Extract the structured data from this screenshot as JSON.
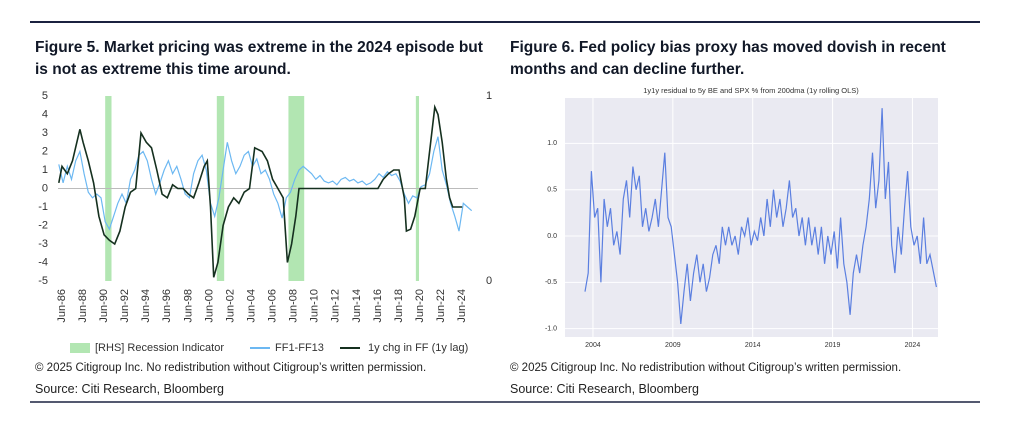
{
  "chart_data": [
    {
      "type": "line",
      "title": "Figure 5. Market pricing was extreme in the 2024 episode but is not as extreme this time around.",
      "xlim": [
        1986.12,
        2026.0
      ],
      "xticks": [
        {
          "value": 1986.5,
          "label": "Jun-86"
        },
        {
          "value": 1988.5,
          "label": "Jun-88"
        },
        {
          "value": 1990.5,
          "label": "Jun-90"
        },
        {
          "value": 1992.5,
          "label": "Jun-92"
        },
        {
          "value": 1994.5,
          "label": "Jun-94"
        },
        {
          "value": 1996.5,
          "label": "Jun-96"
        },
        {
          "value": 1998.5,
          "label": "Jun-98"
        },
        {
          "value": 2000.5,
          "label": "Jun-00"
        },
        {
          "value": 2002.5,
          "label": "Jun-02"
        },
        {
          "value": 2004.5,
          "label": "Jun-04"
        },
        {
          "value": 2006.5,
          "label": "Jun-06"
        },
        {
          "value": 2008.5,
          "label": "Jun-08"
        },
        {
          "value": 2010.5,
          "label": "Jun-10"
        },
        {
          "value": 2012.5,
          "label": "Jun-12"
        },
        {
          "value": 2014.5,
          "label": "Jun-14"
        },
        {
          "value": 2016.5,
          "label": "Jun-16"
        },
        {
          "value": 2018.5,
          "label": "Jun-18"
        },
        {
          "value": 2020.5,
          "label": "Jun-20"
        },
        {
          "value": 2022.5,
          "label": "Jun-22"
        },
        {
          "value": 2024.5,
          "label": "Jun-24"
        }
      ],
      "ylim": [
        -5,
        5
      ],
      "yticks": [
        -5,
        -4,
        -3,
        -2,
        -1,
        0,
        1,
        2,
        3,
        4,
        5
      ],
      "y2lim": [
        0,
        1
      ],
      "y2ticks": [
        0,
        1
      ],
      "recessions": {
        "name": "[RHS] Recession Indicator",
        "color": "#b2e6b2",
        "axis": "y2",
        "spans": [
          [
            1990.6,
            1991.2
          ],
          [
            2001.2,
            2001.9
          ],
          [
            2008.0,
            2009.5
          ],
          [
            2020.1,
            2020.4
          ]
        ],
        "values": [
          1,
          1,
          1,
          1
        ]
      },
      "series": [
        {
          "name": "FF1-FF13",
          "color": "#6cb8f2",
          "x": [
            1986.2,
            1986.6,
            1987,
            1987.4,
            1987.8,
            1988.2,
            1988.6,
            1989,
            1989.4,
            1989.8,
            1990.2,
            1990.6,
            1991,
            1991.4,
            1991.8,
            1992.2,
            1992.6,
            1993,
            1993.4,
            1993.8,
            1994.2,
            1994.6,
            1995,
            1995.4,
            1995.8,
            1996.2,
            1996.6,
            1997,
            1997.4,
            1997.8,
            1998.2,
            1998.6,
            1999,
            1999.4,
            1999.8,
            2000.2,
            2000.6,
            2001,
            2001.4,
            2001.8,
            2002.2,
            2002.6,
            2003,
            2003.4,
            2003.8,
            2004.2,
            2004.6,
            2005,
            2005.4,
            2005.8,
            2006.2,
            2006.6,
            2007,
            2007.4,
            2007.8,
            2008.2,
            2008.6,
            2009,
            2009.4,
            2009.8,
            2010.2,
            2010.6,
            2011,
            2011.4,
            2011.8,
            2012.2,
            2012.6,
            2013,
            2013.4,
            2013.8,
            2014.2,
            2014.6,
            2015,
            2015.4,
            2015.8,
            2016.2,
            2016.6,
            2017,
            2017.4,
            2017.8,
            2018.2,
            2018.6,
            2019,
            2019.4,
            2019.8,
            2020.2,
            2020.6,
            2021,
            2021.4,
            2021.8,
            2022.2,
            2022.6,
            2023,
            2023.4,
            2023.8,
            2024.2,
            2024.6,
            2025,
            2025.4
          ],
          "values": [
            1.3,
            0.3,
            1.2,
            0.5,
            1.5,
            2.0,
            0.8,
            -0.2,
            -0.5,
            -0.3,
            -0.5,
            -1.8,
            -2.2,
            -1.5,
            -0.8,
            -0.3,
            -0.8,
            0.5,
            1.0,
            1.8,
            2.0,
            1.5,
            0.5,
            -0.3,
            0.3,
            1.0,
            1.5,
            0.8,
            1.2,
            0.5,
            -0.3,
            -0.5,
            0.8,
            1.5,
            1.8,
            1.0,
            -0.8,
            -1.5,
            -0.5,
            1.0,
            2.5,
            1.5,
            0.8,
            1.2,
            1.8,
            2.0,
            1.2,
            1.6,
            0.8,
            1.0,
            0.5,
            -0.3,
            -0.8,
            -1.6,
            -0.5,
            -0.2,
            0.5,
            1.0,
            1.2,
            1.0,
            0.8,
            0.5,
            0.7,
            0.4,
            0.3,
            0.4,
            0.2,
            0.5,
            0.6,
            0.4,
            0.5,
            0.3,
            0.4,
            0.2,
            0.3,
            0.5,
            0.8,
            0.6,
            0.9,
            0.7,
            0.8,
            0.4,
            -0.3,
            -0.8,
            -0.4,
            -0.5,
            0.1,
            0.2,
            0.8,
            2.0,
            2.8,
            1.0,
            0.2,
            -0.8,
            -1.5,
            -2.3,
            -0.8,
            -1.0,
            -1.2
          ]
        },
        {
          "name": "1y chg in FF (1y lag)",
          "color": "#15301f",
          "x": [
            1986.2,
            1986.5,
            1987,
            1987.5,
            1988.2,
            1988.5,
            1989,
            1989.5,
            1990,
            1990.5,
            1991,
            1991.5,
            1992,
            1992.5,
            1993,
            1993.5,
            1994,
            1994.5,
            1995,
            1995.5,
            1996,
            1996.5,
            1997,
            1997.5,
            1998,
            1998.5,
            1999,
            1999.5,
            2000,
            2000.3,
            2000.6,
            2000.9,
            2001.3,
            2001.8,
            2002.3,
            2002.8,
            2003.3,
            2003.8,
            2004.3,
            2004.8,
            2005.5,
            2006,
            2006.5,
            2007,
            2007.5,
            2007.9,
            2008.3,
            2008.7,
            2009,
            2009.5,
            2016.5,
            2017,
            2017.5,
            2018,
            2018.5,
            2019,
            2019.2,
            2019.6,
            2020,
            2020.5,
            2021,
            2021.3,
            2021.9,
            2022.2,
            2022.6,
            2023,
            2023.3,
            2023.6,
            2024,
            2024.5
          ],
          "values": [
            0.3,
            1.2,
            0.8,
            1.5,
            3.2,
            2.5,
            1.5,
            0.3,
            -1.5,
            -2.5,
            -2.8,
            -3.0,
            -2.3,
            -1.0,
            -0.2,
            0,
            3.0,
            2.5,
            2.2,
            1.0,
            -0.3,
            -0.5,
            0.2,
            0,
            0,
            -0.3,
            -0.5,
            0.3,
            1.2,
            1.5,
            -1,
            -4.8,
            -4.0,
            -2.0,
            -1.0,
            -0.5,
            -0.8,
            -0.2,
            0,
            2.2,
            2.0,
            1.5,
            0.5,
            0,
            -0.5,
            -4.0,
            -3.0,
            -1.5,
            0,
            0,
            0,
            0.5,
            0.8,
            1.0,
            1.0,
            -0.5,
            -2.3,
            -2.2,
            -1.5,
            0,
            0,
            1.5,
            4.4,
            4.0,
            2.5,
            0.5,
            -0.5,
            -1.0,
            -1.0,
            -1.0
          ]
        }
      ]
    },
    {
      "type": "line",
      "title": "Figure 6. Fed policy bias proxy has moved dovish in recent months and can decline further.",
      "subtitle": "1y1y residual to 5y BE and SPX % from 200dma (1y rolling OLS)",
      "xlim": [
        2002.25,
        2025.6
      ],
      "xticks": [
        2004,
        2009,
        2014,
        2019,
        2024
      ],
      "ylim": [
        -1.09,
        1.49
      ],
      "yticks": [
        {
          "value": -1,
          "label": "-1.0"
        },
        -0.5,
        {
          "value": 0,
          "label": "0.0"
        },
        0.5,
        {
          "value": 1,
          "label": "1.0"
        }
      ],
      "grid": true,
      "series": [
        {
          "color": "#5b7fe0",
          "x": [
            2003.5,
            2003.7,
            2003.9,
            2004.1,
            2004.3,
            2004.5,
            2004.7,
            2004.9,
            2005.1,
            2005.3,
            2005.5,
            2005.7,
            2005.9,
            2006.1,
            2006.3,
            2006.5,
            2006.7,
            2006.9,
            2007.1,
            2007.3,
            2007.5,
            2007.7,
            2007.9,
            2008.1,
            2008.3,
            2008.5,
            2008.7,
            2008.9,
            2009.1,
            2009.3,
            2009.5,
            2009.7,
            2009.9,
            2010.1,
            2010.3,
            2010.5,
            2010.7,
            2010.9,
            2011.1,
            2011.3,
            2011.5,
            2011.7,
            2011.9,
            2012.1,
            2012.3,
            2012.5,
            2012.7,
            2012.9,
            2013.1,
            2013.3,
            2013.5,
            2013.7,
            2013.9,
            2014.1,
            2014.3,
            2014.5,
            2014.7,
            2014.9,
            2015.1,
            2015.3,
            2015.5,
            2015.7,
            2015.9,
            2016.1,
            2016.3,
            2016.5,
            2016.7,
            2016.9,
            2017.1,
            2017.3,
            2017.5,
            2017.7,
            2017.9,
            2018.1,
            2018.3,
            2018.5,
            2018.7,
            2018.9,
            2019.1,
            2019.3,
            2019.5,
            2019.7,
            2019.9,
            2020.1,
            2020.3,
            2020.5,
            2020.7,
            2020.9,
            2021.1,
            2021.3,
            2021.5,
            2021.7,
            2021.9,
            2022.1,
            2022.3,
            2022.5,
            2022.7,
            2022.9,
            2023.1,
            2023.3,
            2023.5,
            2023.7,
            2023.9,
            2024.1,
            2024.3,
            2024.5,
            2024.7,
            2024.9,
            2025.1,
            2025.5
          ],
          "values": [
            -0.6,
            -0.4,
            0.7,
            0.2,
            0.3,
            -0.5,
            0.4,
            0.1,
            0.3,
            -0.1,
            0.05,
            -0.2,
            0.4,
            0.6,
            0.2,
            0.75,
            0.5,
            0.65,
            0.1,
            0.3,
            0.05,
            0.2,
            0.4,
            0.1,
            0.5,
            0.9,
            0.2,
            0.1,
            -0.2,
            -0.5,
            -0.95,
            -0.6,
            -0.3,
            -0.7,
            -0.4,
            -0.2,
            -0.5,
            -0.3,
            -0.6,
            -0.45,
            -0.2,
            -0.1,
            -0.3,
            0.1,
            -0.1,
            0.1,
            -0.1,
            0.0,
            -0.2,
            0.1,
            0.0,
            0.2,
            -0.1,
            0.05,
            -0.05,
            0.2,
            0.0,
            0.4,
            0.1,
            0.5,
            0.2,
            0.4,
            0.1,
            0.3,
            0.6,
            0.2,
            0.3,
            0.0,
            0.2,
            -0.1,
            0.2,
            -0.1,
            0.1,
            -0.2,
            0.1,
            -0.3,
            0.0,
            -0.2,
            0.05,
            -0.35,
            0.2,
            -0.3,
            -0.5,
            -0.85,
            -0.4,
            -0.2,
            -0.4,
            -0.1,
            0.1,
            0.4,
            0.9,
            0.3,
            0.6,
            1.38,
            0.4,
            0.8,
            -0.1,
            -0.4,
            0.1,
            -0.2,
            0.3,
            0.7,
            0.1,
            -0.1,
            0.0,
            -0.3,
            0.2,
            -0.3,
            -0.2,
            -0.55
          ]
        }
      ]
    }
  ],
  "footer": [
    {
      "copyright": "© 2025 Citigroup Inc. No redistribution without Citigroup’s written permission.",
      "source": "Source: Citi Research, Bloomberg"
    },
    {
      "copyright": "© 2025 Citigroup Inc. No redistribution without Citigroup’s written permission.",
      "source": "Source: Citi Research, Bloomberg"
    }
  ]
}
